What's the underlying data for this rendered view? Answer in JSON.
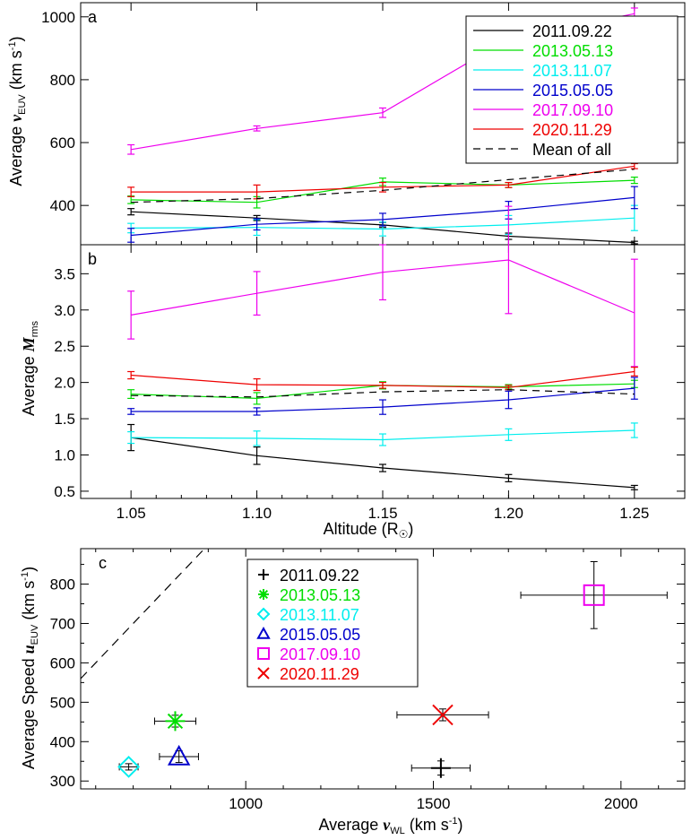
{
  "colors": {
    "2011.09.22": "#000000",
    "2013.05.13": "#00dd00",
    "2013.11.07": "#00eeee",
    "2015.05.05": "#0000cc",
    "2017.09.10": "#ee00ee",
    "2020.11.29": "#ee0000",
    "Mean of all": "#000000"
  },
  "chart_data": [
    {
      "panel": "a",
      "type": "line",
      "panel_label": "a",
      "ylabel": "Average v_EUV (km s^-1)",
      "xlabel": "",
      "x": [
        1.05,
        1.1,
        1.15,
        1.2,
        1.25
      ],
      "xlim": [
        1.03,
        1.27
      ],
      "ylim": [
        275,
        1045
      ],
      "yticks": [
        400,
        600,
        800,
        1000
      ],
      "grid": false,
      "legend_position": "top-right",
      "series": [
        {
          "name": "2011.09.22",
          "values": [
            380,
            360,
            338,
            302,
            282
          ],
          "errors": [
            10,
            8,
            8,
            10,
            4
          ]
        },
        {
          "name": "2013.05.13",
          "values": [
            418,
            410,
            475,
            465,
            480
          ],
          "errors": [
            12,
            18,
            12,
            8,
            10
          ]
        },
        {
          "name": "2013.11.07",
          "values": [
            328,
            330,
            325,
            338,
            360
          ],
          "errors": [
            15,
            25,
            22,
            30,
            40
          ]
        },
        {
          "name": "2015.05.05",
          "values": [
            305,
            340,
            355,
            385,
            425
          ],
          "errors": [
            22,
            18,
            20,
            28,
            35
          ]
        },
        {
          "name": "2017.09.10",
          "values": [
            578,
            645,
            695,
            930,
            1010
          ],
          "errors": [
            15,
            8,
            15,
            15,
            18
          ]
        },
        {
          "name": "2020.11.29",
          "values": [
            443,
            443,
            458,
            465,
            525
          ],
          "errors": [
            15,
            22,
            15,
            8,
            8
          ]
        },
        {
          "name": "Mean of all",
          "values": [
            410,
            422,
            448,
            482,
            515
          ],
          "dashed": true
        }
      ]
    },
    {
      "panel": "b",
      "type": "line",
      "panel_label": "b",
      "ylabel": "Average M_rms",
      "xlabel": "Altitude (R☉)",
      "x": [
        1.05,
        1.1,
        1.15,
        1.2,
        1.25
      ],
      "x_tick_labels": [
        "1.05",
        "1.10",
        "1.15",
        "1.20",
        "1.25"
      ],
      "xlim": [
        1.03,
        1.27
      ],
      "ylim": [
        0.4,
        3.9
      ],
      "yticks": [
        0.5,
        1.0,
        1.5,
        2.0,
        2.5,
        3.0,
        3.5
      ],
      "grid": false,
      "series": [
        {
          "name": "2011.09.22",
          "values": [
            1.24,
            0.99,
            0.82,
            0.68,
            0.55
          ],
          "errors": [
            0.18,
            0.12,
            0.05,
            0.05,
            0.03
          ]
        },
        {
          "name": "2013.05.13",
          "values": [
            1.84,
            1.78,
            1.96,
            1.94,
            1.98
          ],
          "errors": [
            0.06,
            0.08,
            0.05,
            0.03,
            0.05
          ]
        },
        {
          "name": "2013.11.07",
          "values": [
            1.24,
            1.23,
            1.21,
            1.28,
            1.34
          ],
          "errors": [
            0.08,
            0.1,
            0.08,
            0.08,
            0.1
          ]
        },
        {
          "name": "2015.05.05",
          "values": [
            1.6,
            1.6,
            1.66,
            1.76,
            1.92
          ],
          "errors": [
            0.04,
            0.05,
            0.1,
            0.12,
            0.15
          ]
        },
        {
          "name": "2017.09.10",
          "values": [
            2.93,
            3.23,
            3.52,
            3.69,
            2.96
          ],
          "errors": [
            0.33,
            0.3,
            0.38,
            0.74,
            0.74
          ]
        },
        {
          "name": "2020.11.29",
          "values": [
            2.1,
            1.97,
            1.96,
            1.93,
            2.15
          ],
          "errors": [
            0.05,
            0.08,
            0.04,
            0.03,
            0.06
          ]
        },
        {
          "name": "Mean of all",
          "values": [
            1.82,
            1.8,
            1.87,
            1.9,
            1.84
          ],
          "dashed": true
        }
      ]
    },
    {
      "panel": "c",
      "type": "scatter",
      "panel_label": "c",
      "xlabel": "Average v_WL (km s^-1)",
      "ylabel": "Average Speed u_EUV (km s^-1)",
      "xlim": [
        560,
        2170
      ],
      "ylim": [
        280,
        890
      ],
      "xticks": [
        1000,
        1500,
        2000
      ],
      "yticks": [
        300,
        400,
        500,
        600,
        700,
        800
      ],
      "grid": false,
      "legend_position": "top-left",
      "reference_line": "dashed y = x",
      "points": [
        {
          "name": "2011.09.22",
          "marker": "plus",
          "x": 1520,
          "y": 333,
          "xerr": 78,
          "yerr": 18
        },
        {
          "name": "2013.05.13",
          "marker": "asterisk",
          "x": 812,
          "y": 452,
          "xerr": 55,
          "yerr": 15
        },
        {
          "name": "2013.11.07",
          "marker": "diamond",
          "x": 688,
          "y": 336,
          "xerr": 25,
          "yerr": 8
        },
        {
          "name": "2015.05.05",
          "marker": "triangle",
          "x": 822,
          "y": 362,
          "xerr": 52,
          "yerr": 15
        },
        {
          "name": "2017.09.10",
          "marker": "square",
          "x": 1928,
          "y": 772,
          "xerr": 195,
          "yerr": 85
        },
        {
          "name": "2020.11.29",
          "marker": "cross",
          "x": 1525,
          "y": 468,
          "xerr": 122,
          "yerr": 15
        }
      ]
    }
  ],
  "labels": {
    "ya_main": "Average ",
    "ya_var": "v",
    "ya_sub": "EUV",
    "ya_unit": " (km s",
    "ya_exp": "-1",
    "ya_close": ")",
    "yb_main": "Average ",
    "yb_var": "M",
    "yb_sub": "rms",
    "xb_main": "Altitude (R",
    "xb_sun": "☉",
    "xb_close": ")",
    "yc_main": "Average Speed ",
    "yc_var": "u",
    "yc_sub": "EUV",
    "yc_unit": " (km s",
    "yc_exp": "-1",
    "yc_close": ")",
    "xc_main": "Average ",
    "xc_var": "v",
    "xc_sub": "WL",
    "xc_unit": " (km s",
    "xc_exp": "-1",
    "xc_close": ")"
  }
}
